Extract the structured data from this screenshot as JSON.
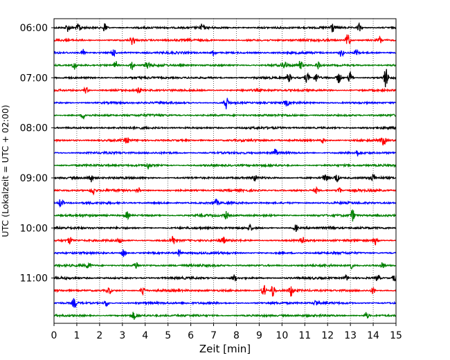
{
  "chart_data": {
    "type": "line",
    "title": "",
    "xlabel": "Zeit  [min]",
    "ylabel": "UTC (Lokalzeit = UTC + 02:00)",
    "xlim": [
      0,
      15
    ],
    "x_ticks": [
      "0",
      "1",
      "2",
      "3",
      "4",
      "5",
      "6",
      "7",
      "8",
      "9",
      "10",
      "11",
      "12",
      "13",
      "14",
      "15"
    ],
    "y_tick_labels": [
      "06:00",
      "07:00",
      "08:00",
      "09:00",
      "10:00",
      "11:00"
    ],
    "grid": "vertical dotted at each minute",
    "trace_interval_min": 15,
    "series_colors": [
      "#000000",
      "#ff0000",
      "#0000ff",
      "#008000"
    ],
    "traces": [
      {
        "start": "06:00",
        "color": "#000000",
        "events": [
          [
            0.6,
            5
          ],
          [
            1.1,
            6
          ],
          [
            2.25,
            9
          ],
          [
            6.5,
            5
          ],
          [
            12.2,
            7
          ],
          [
            13.4,
            6
          ]
        ]
      },
      {
        "start": "06:15",
        "color": "#ff0000",
        "events": [
          [
            3.45,
            7
          ],
          [
            12.9,
            11
          ],
          [
            14.3,
            5
          ]
        ]
      },
      {
        "start": "06:30",
        "color": "#0000ff",
        "events": [
          [
            1.3,
            5
          ],
          [
            2.6,
            5
          ],
          [
            7.0,
            5
          ],
          [
            12.6,
            6
          ],
          [
            13.3,
            6
          ]
        ]
      },
      {
        "start": "06:45",
        "color": "#008000",
        "events": [
          [
            0.9,
            6
          ],
          [
            2.7,
            6
          ],
          [
            3.4,
            7
          ],
          [
            4.1,
            7
          ],
          [
            10.1,
            6
          ],
          [
            10.8,
            6
          ],
          [
            11.6,
            6
          ]
        ]
      },
      {
        "start": "07:00",
        "color": "#000000",
        "events": [
          [
            10.3,
            7
          ],
          [
            11.1,
            7
          ],
          [
            11.5,
            6
          ],
          [
            12.5,
            8
          ],
          [
            13.0,
            9
          ],
          [
            14.55,
            14
          ]
        ]
      },
      {
        "start": "07:15",
        "color": "#ff0000",
        "events": [
          [
            1.4,
            5
          ],
          [
            3.7,
            4
          ]
        ]
      },
      {
        "start": "07:30",
        "color": "#0000ff",
        "events": [
          [
            7.55,
            10
          ],
          [
            10.2,
            4
          ]
        ]
      },
      {
        "start": "07:45",
        "color": "#008000",
        "events": [
          [
            1.3,
            4
          ]
        ]
      },
      {
        "start": "08:00",
        "color": "#000000",
        "events": []
      },
      {
        "start": "08:15",
        "color": "#ff0000",
        "events": [
          [
            3.2,
            4
          ],
          [
            11.8,
            4
          ],
          [
            14.45,
            8
          ]
        ]
      },
      {
        "start": "08:30",
        "color": "#0000ff",
        "events": [
          [
            9.7,
            6
          ],
          [
            13.3,
            4
          ]
        ]
      },
      {
        "start": "08:45",
        "color": "#008000",
        "events": [
          [
            4.15,
            5
          ]
        ]
      },
      {
        "start": "09:00",
        "color": "#000000",
        "events": [
          [
            1.6,
            6
          ],
          [
            8.8,
            4
          ],
          [
            11.9,
            7
          ],
          [
            12.4,
            6
          ],
          [
            14.0,
            5
          ]
        ]
      },
      {
        "start": "09:15",
        "color": "#ff0000",
        "events": [
          [
            1.7,
            6
          ],
          [
            3.7,
            5
          ],
          [
            11.5,
            4
          ],
          [
            12.5,
            5
          ]
        ]
      },
      {
        "start": "09:30",
        "color": "#0000ff",
        "events": [
          [
            0.3,
            7
          ],
          [
            7.1,
            4
          ]
        ]
      },
      {
        "start": "09:45",
        "color": "#008000",
        "events": [
          [
            3.2,
            5
          ],
          [
            7.55,
            5
          ],
          [
            13.1,
            8
          ]
        ]
      },
      {
        "start": "10:00",
        "color": "#000000",
        "events": [
          [
            8.6,
            4
          ],
          [
            10.6,
            5
          ],
          [
            12.2,
            4
          ]
        ]
      },
      {
        "start": "10:15",
        "color": "#ff0000",
        "events": [
          [
            0.7,
            5
          ],
          [
            2.9,
            6
          ],
          [
            5.2,
            8
          ],
          [
            7.4,
            6
          ],
          [
            10.9,
            5
          ],
          [
            14.1,
            6
          ]
        ]
      },
      {
        "start": "10:30",
        "color": "#0000ff",
        "events": [
          [
            3.05,
            6
          ],
          [
            5.5,
            5
          ]
        ]
      },
      {
        "start": "10:45",
        "color": "#008000",
        "events": [
          [
            1.5,
            4
          ],
          [
            3.6,
            5
          ],
          [
            13.0,
            5
          ],
          [
            14.4,
            4
          ]
        ]
      },
      {
        "start": "11:00",
        "color": "#000000",
        "events": [
          [
            7.9,
            5
          ],
          [
            12.8,
            4
          ],
          [
            14.2,
            5
          ],
          [
            14.95,
            6
          ]
        ]
      },
      {
        "start": "11:15",
        "color": "#ff0000",
        "events": [
          [
            2.4,
            5
          ],
          [
            3.9,
            7
          ],
          [
            9.2,
            9
          ],
          [
            9.6,
            9
          ],
          [
            10.4,
            8
          ],
          [
            14.0,
            5
          ]
        ]
      },
      {
        "start": "11:30",
        "color": "#0000ff",
        "events": [
          [
            0.9,
            7
          ],
          [
            2.3,
            5
          ],
          [
            11.5,
            4
          ]
        ]
      },
      {
        "start": "11:45",
        "color": "#008000",
        "events": [
          [
            3.5,
            5
          ],
          [
            13.7,
            5
          ]
        ]
      }
    ]
  }
}
